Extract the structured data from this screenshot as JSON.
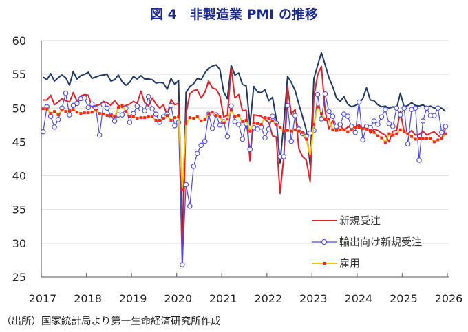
{
  "title": "図 4　非製造業 PMI の推移",
  "source": "（出所）国家統計局より第一生命経済研究所作成",
  "chart_data": {
    "type": "line",
    "title": "図 4　非製造業 PMI の推移",
    "xlabel": "",
    "ylabel": "",
    "ylim": [
      25,
      60
    ],
    "xlim": [
      2017,
      2026
    ],
    "yticks": [
      25,
      30,
      35,
      40,
      45,
      50,
      55,
      60
    ],
    "xticks": [
      "2017",
      "2018",
      "2019",
      "2020",
      "2021",
      "2022",
      "2023",
      "2024",
      "2025",
      "2026"
    ],
    "grid": true,
    "legend_position": "bottom-right",
    "start_month": "2017-01",
    "end_month": "2025-12",
    "series": [
      {
        "color": "#1f3864",
        "marker": "none",
        "values": [
          54.6,
          54.2,
          55.1,
          54.0,
          54.5,
          54.9,
          54.5,
          53.4,
          55.4,
          54.3,
          54.8,
          55.0,
          55.3,
          54.4,
          54.6,
          54.8,
          54.9,
          55.0,
          54.0,
          54.2,
          54.9,
          53.9,
          53.4,
          53.8,
          54.7,
          54.3,
          54.8,
          54.3,
          54.3,
          54.2,
          53.7,
          53.8,
          53.7,
          52.8,
          54.4,
          53.5,
          54.1,
          29.6,
          52.3,
          53.2,
          53.6,
          54.4,
          54.2,
          55.2,
          55.9,
          56.2,
          56.4,
          55.7,
          52.4,
          51.4,
          56.3,
          54.9,
          55.2,
          53.5,
          53.3,
          47.5,
          53.2,
          52.4,
          52.3,
          52.7,
          51.1,
          51.6,
          48.4,
          41.9,
          47.8,
          54.7,
          53.8,
          52.6,
          50.6,
          48.7,
          46.7,
          41.6,
          54.4,
          56.3,
          58.2,
          56.4,
          54.5,
          53.2,
          51.5,
          51.0,
          51.7,
          50.6,
          50.2,
          50.4,
          50.7,
          51.4,
          53.0,
          51.2,
          51.1,
          50.5,
          50.2,
          50.3,
          50.0,
          50.2,
          50.0,
          52.2,
          50.2,
          50.4,
          50.8,
          50.4,
          50.3,
          50.5,
          50.1,
          50.3,
          50.0,
          50.1,
          50.0,
          49.5
        ]
      },
      {
        "name": "新規受注",
        "color": "#e0202a",
        "marker": "none",
        "values": [
          51.2,
          51.2,
          51.9,
          50.5,
          50.9,
          51.4,
          51.1,
          50.9,
          52.3,
          51.0,
          51.8,
          52.0,
          51.9,
          50.1,
          50.4,
          50.5,
          51.0,
          50.8,
          50.4,
          51.1,
          50.4,
          50.1,
          50.4,
          50.6,
          51.0,
          50.7,
          52.5,
          50.8,
          50.3,
          51.5,
          50.6,
          50.0,
          50.5,
          48.9,
          51.3,
          50.5,
          50.7,
          26.5,
          49.2,
          52.1,
          52.6,
          52.7,
          51.5,
          52.3,
          54.0,
          53.0,
          52.8,
          51.8,
          48.7,
          48.9,
          55.9,
          51.5,
          52.0,
          49.6,
          49.7,
          42.2,
          49.0,
          48.9,
          48.8,
          48.3,
          47.9,
          45.9,
          45.7,
          37.4,
          42.8,
          53.2,
          49.1,
          49.8,
          44.0,
          42.8,
          42.3,
          39.1,
          51.7,
          54.9,
          56.2,
          49.5,
          46.9,
          48.2,
          46.7,
          47.5,
          46.7,
          47.2,
          47.2,
          47.1,
          47.6,
          46.8,
          47.4,
          46.3,
          46.9,
          46.7,
          46.3,
          46.0,
          45.0,
          46.6,
          46.7,
          49.5,
          46.4,
          46.2,
          46.7,
          46.0,
          46.1,
          46.6,
          46.0,
          46.3,
          46.5,
          46.0,
          45.5,
          47.0
        ]
      },
      {
        "name": "輸出向け新規受注",
        "color": "#4a4ae0",
        "marker": "circle",
        "values": [
          46.5,
          50.2,
          48.8,
          47.2,
          48.3,
          50.0,
          52.2,
          49.0,
          50.4,
          50.7,
          51.4,
          51.5,
          50.1,
          50.6,
          50.0,
          46.0,
          50.5,
          50.0,
          48.9,
          48.1,
          49.0,
          49.0,
          50.0,
          47.9,
          49.2,
          50.3,
          49.9,
          49.6,
          51.7,
          49.9,
          49.1,
          47.9,
          48.7,
          49.1,
          50.4,
          47.4,
          47.9,
          26.8,
          38.7,
          35.5,
          41.4,
          43.3,
          44.5,
          45.1,
          49.1,
          47.0,
          49.0,
          47.5,
          48.0,
          45.8,
          50.3,
          48.0,
          47.6,
          45.4,
          47.7,
          43.9,
          47.1,
          46.9,
          47.2,
          45.6,
          46.9,
          48.8,
          47.8,
          42.8,
          42.8,
          50.4,
          45.1,
          48.9,
          46.9,
          46.2,
          45.8,
          46.3,
          46.7,
          52.0,
          48.4,
          52.1,
          49.5,
          48.8,
          47.3,
          47.6,
          49.1,
          48.8,
          47.3,
          46.4,
          50.9,
          45.3,
          47.3,
          47.1,
          48.1,
          47.6,
          48.7,
          49.8,
          47.7,
          47.3,
          50.0,
          49.0,
          50.0,
          44.7,
          49.8,
          50.0,
          42.3,
          48.1,
          50.0,
          48.9,
          48.9,
          50.0,
          46.4,
          47.3
        ]
      },
      {
        "name": "雇用",
        "color": "#ffc000",
        "marker": "square",
        "marker_color": "#ff2020",
        "values": [
          49.9,
          49.9,
          49.2,
          49.5,
          49.0,
          49.7,
          49.5,
          49.6,
          49.8,
          49.4,
          49.2,
          49.3,
          49.3,
          49.4,
          49.7,
          49.2,
          49.1,
          48.9,
          48.9,
          48.7,
          50.1,
          50.4,
          49.5,
          48.8,
          48.7,
          48.5,
          48.6,
          48.6,
          48.7,
          48.7,
          48.2,
          48.2,
          48.5,
          48.9,
          48.2,
          48.6,
          48.7,
          37.9,
          47.7,
          48.6,
          48.5,
          48.7,
          48.1,
          48.3,
          49.1,
          49.4,
          48.9,
          48.7,
          47.8,
          48.4,
          49.7,
          48.7,
          48.9,
          48.0,
          48.2,
          46.6,
          47.8,
          47.7,
          47.6,
          48.6,
          48.5,
          48.1,
          47.6,
          47.1,
          46.6,
          46.7,
          46.6,
          46.8,
          46.6,
          46.4,
          45.4,
          42.9,
          47.6,
          50.2,
          49.2,
          48.3,
          48.4,
          46.8,
          46.7,
          46.8,
          46.8,
          46.5,
          46.8,
          47.1,
          47.1,
          47.0,
          46.9,
          46.7,
          46.4,
          45.9,
          45.6,
          44.9,
          46.2,
          46.0,
          46.2,
          46.8,
          46.6,
          46.2,
          45.8,
          45.4,
          45.5,
          45.5,
          45.5,
          45.5,
          45.0,
          45.3,
          45.5,
          46.2
        ]
      }
    ]
  }
}
